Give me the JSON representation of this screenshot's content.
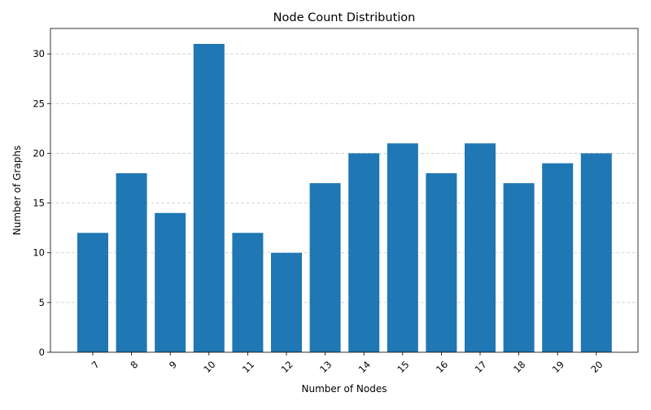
{
  "chart_data": {
    "type": "bar",
    "title": "Node Count Distribution",
    "xlabel": "Number of Nodes",
    "ylabel": "Number of Graphs",
    "categories": [
      "7",
      "8",
      "9",
      "10",
      "11",
      "12",
      "13",
      "14",
      "15",
      "16",
      "17",
      "18",
      "19",
      "20"
    ],
    "values": [
      12,
      18,
      14,
      31,
      12,
      10,
      17,
      20,
      21,
      18,
      21,
      17,
      19,
      20
    ],
    "yticks": [
      0,
      5,
      10,
      15,
      20,
      25,
      30
    ],
    "ylim": [
      0,
      32.55
    ],
    "bar_color": "#1f77b4",
    "grid": "y-dashed",
    "legend": "none"
  }
}
